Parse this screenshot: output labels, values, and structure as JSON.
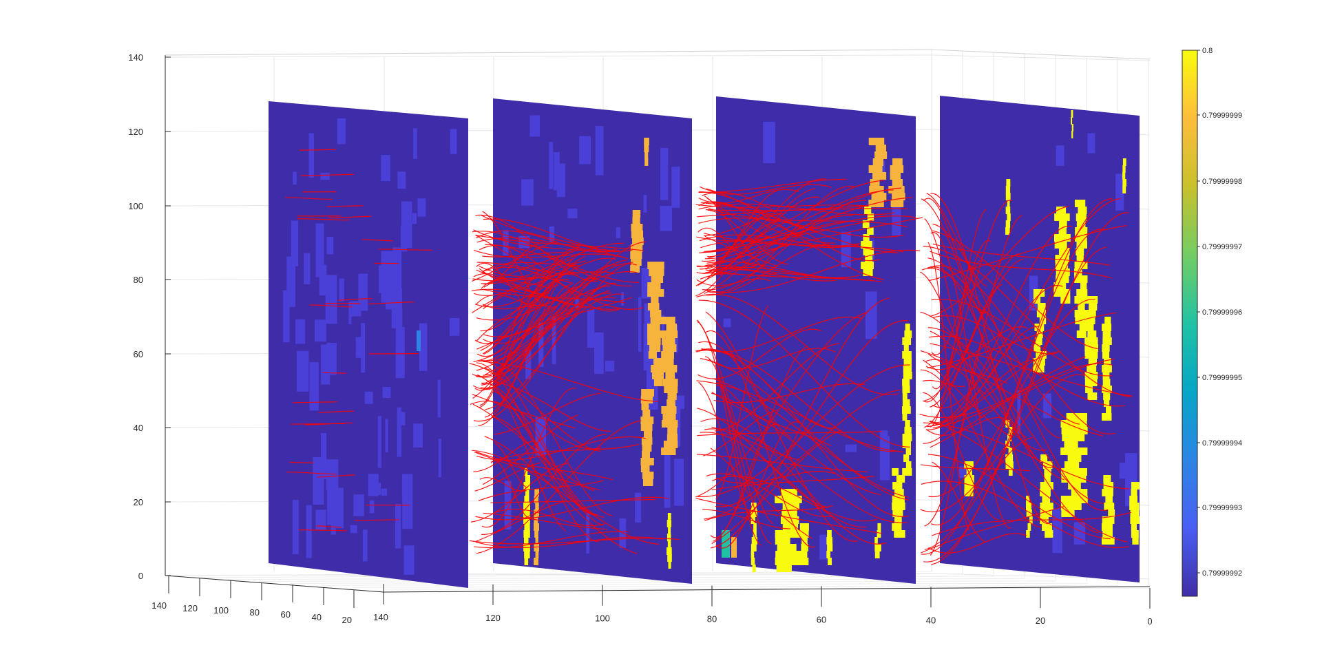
{
  "chart_data": {
    "type": "3d-slice-streamlines",
    "title": "",
    "xlabel": "",
    "ylabel": "",
    "zlabel": "",
    "x_axis": {
      "range": [
        0,
        140
      ],
      "ticks": [
        "0",
        "20",
        "40",
        "60",
        "80",
        "100",
        "120",
        "140"
      ]
    },
    "y_axis": {
      "range": [
        0,
        140
      ],
      "ticks": [
        "0",
        "20",
        "40",
        "60",
        "80",
        "100",
        "120",
        "140"
      ]
    },
    "z_axis": {
      "range": [
        0,
        140
      ],
      "ticks": [
        "0",
        "20",
        "40",
        "60",
        "80",
        "100",
        "120",
        "140"
      ]
    },
    "grid": true,
    "slices": [
      {
        "position": 140,
        "dominant_value": 0.79999992
      },
      {
        "position": 100,
        "dominant_value": 0.79999992
      },
      {
        "position": 60,
        "dominant_value": 0.79999992
      },
      {
        "position": 20,
        "dominant_value": 0.79999992
      }
    ],
    "streamline_color": "#ff0000",
    "colormap": "parula",
    "colorbar": {
      "location": "right",
      "range": [
        0.79999992,
        0.8
      ],
      "ticks": [
        "0.8",
        "0.79999999",
        "0.79999998",
        "0.79999997",
        "0.79999996",
        "0.79999995",
        "0.79999994",
        "0.79999993",
        "0.79999992"
      ],
      "colors": [
        "#f9fb0e",
        "#fdbd3c",
        "#c8c12b",
        "#72cd64",
        "#21c2a4",
        "#06a6c6",
        "#2c85e4",
        "#4a5ff3",
        "#3f2ea6"
      ]
    },
    "colors": {
      "slice_background": "#3e2ca9",
      "slice_patch": "#4a3fd6",
      "hot_yellow": "#f9fb0e",
      "hot_orange": "#f6b43d"
    }
  }
}
